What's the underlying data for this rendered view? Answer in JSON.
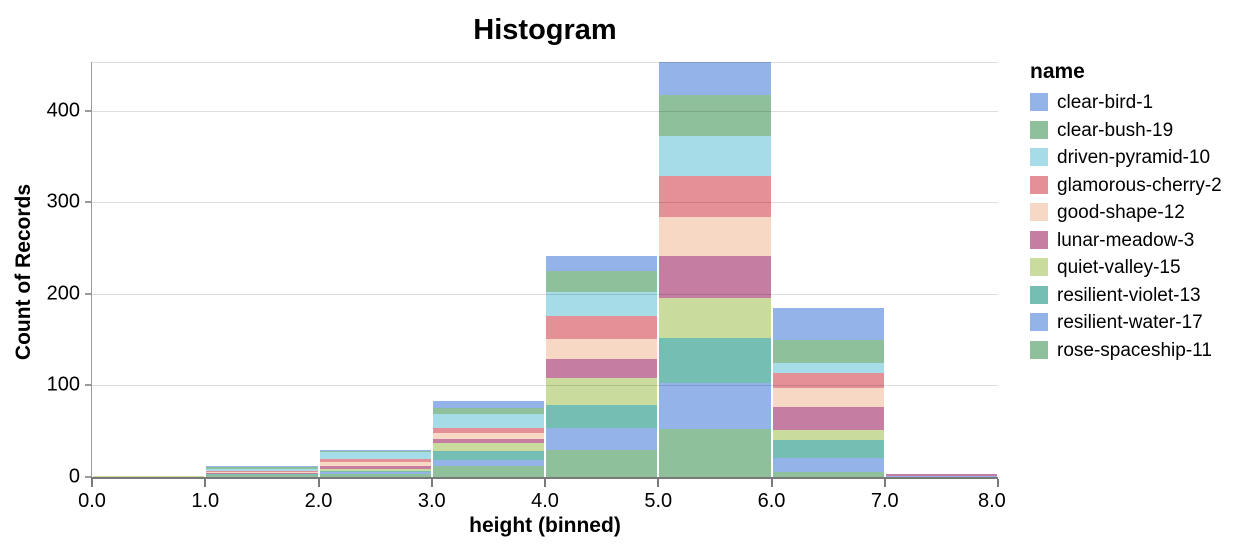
{
  "chart_data": {
    "type": "bar",
    "subtype": "stacked-histogram",
    "title": "Histogram",
    "xlabel": "height (binned)",
    "ylabel": "Count of Records",
    "legend_title": "name",
    "legend_position": "right",
    "grid": true,
    "bin_edges": [
      0,
      1,
      2,
      3,
      4,
      5,
      6,
      7,
      8
    ],
    "x_tick_labels": [
      "0.0",
      "1.0",
      "2.0",
      "3.0",
      "4.0",
      "5.0",
      "6.0",
      "7.0",
      "8.0"
    ],
    "y_ticks": [
      0,
      100,
      200,
      300,
      400
    ],
    "y_tick_labels": [
      "0",
      "100",
      "200",
      "300",
      "400"
    ],
    "xlim": [
      0,
      8
    ],
    "ylim": [
      0,
      453
    ],
    "stack_order": "first-series-on-top",
    "bin_totals": [
      1,
      12,
      30,
      83,
      242,
      453,
      185,
      3
    ],
    "series": [
      {
        "name": "clear-bird-1",
        "color": "#94b3e9",
        "values": [
          0,
          1,
          2,
          8,
          17,
          36,
          35,
          0
        ]
      },
      {
        "name": "clear-bush-19",
        "color": "#8dc09b",
        "values": [
          0,
          2,
          1,
          6,
          23,
          44,
          25,
          0
        ]
      },
      {
        "name": "driven-pyramid-10",
        "color": "#a5dce8",
        "values": [
          0,
          2,
          7,
          15,
          26,
          44,
          11,
          0
        ]
      },
      {
        "name": "glamorous-cherry-2",
        "color": "#e59096",
        "values": [
          0,
          2,
          4,
          6,
          25,
          45,
          17,
          0
        ]
      },
      {
        "name": "good-shape-12",
        "color": "#f6d8c4",
        "values": [
          0,
          1,
          4,
          6,
          22,
          42,
          21,
          0
        ]
      },
      {
        "name": "lunar-meadow-3",
        "color": "#c57ea2",
        "values": [
          0,
          1,
          3,
          5,
          21,
          46,
          25,
          2
        ]
      },
      {
        "name": "quiet-valley-15",
        "color": "#c9dc9e",
        "values": [
          1,
          0,
          2,
          9,
          29,
          44,
          11,
          0
        ]
      },
      {
        "name": "resilient-violet-13",
        "color": "#74beb4",
        "values": [
          0,
          1,
          2,
          9,
          25,
          49,
          19,
          0
        ]
      },
      {
        "name": "resilient-water-17",
        "color": "#94b3e9",
        "values": [
          0,
          0,
          2,
          7,
          24,
          51,
          15,
          1
        ]
      },
      {
        "name": "rose-spaceship-11",
        "color": "#8dc09b",
        "values": [
          0,
          2,
          3,
          12,
          30,
          52,
          6,
          0
        ]
      }
    ]
  }
}
